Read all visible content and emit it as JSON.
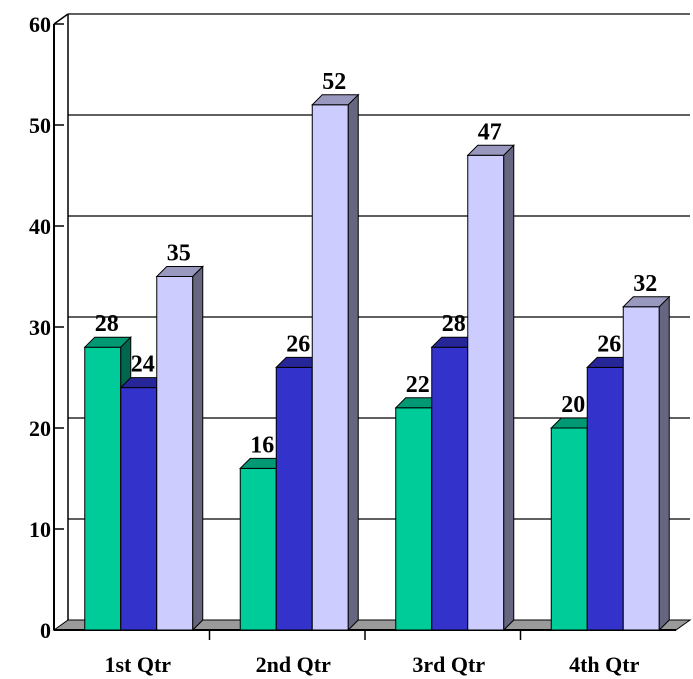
{
  "chart_data": {
    "type": "bar",
    "title": "",
    "xlabel": "",
    "ylabel": "",
    "categories": [
      "1st Qtr",
      "2nd Qtr",
      "3rd Qtr",
      "4th Qtr"
    ],
    "series": [
      {
        "values": [
          28,
          16,
          22,
          20
        ],
        "color": "#00CC99"
      },
      {
        "values": [
          24,
          26,
          28,
          26
        ],
        "color": "#3333CC"
      },
      {
        "values": [
          35,
          52,
          47,
          32
        ],
        "color": "#CCCCFF"
      }
    ],
    "ylim": [
      0,
      60
    ],
    "yticks": [
      "0",
      "10",
      "20",
      "30",
      "40",
      "50",
      "60"
    ],
    "grid": true,
    "style": "3d-clustered",
    "data_labels": true
  }
}
